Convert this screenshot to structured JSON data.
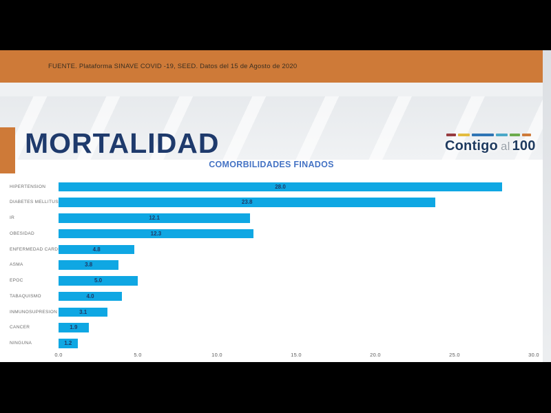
{
  "letterbox_color": "#000000",
  "banner": {
    "text": "FUENTE. Plataforma SINAVE COVID -19, SEED. Datos del 15 de Agosto de 2020",
    "background": "#CE7A38",
    "text_color": "#3A2E20"
  },
  "header": {
    "title": "MORTALIDAD",
    "title_color": "#1E3A6C",
    "accent_color": "#CE7A38",
    "logo": {
      "contigo": "Contigo",
      "al": "al",
      "hundred": "100",
      "text_color": "#1E3A5F",
      "al_color": "#98A0A8",
      "dash_colors": [
        "#973A3F",
        "#E3BC40",
        "#2E74B5",
        "#4AA8C8",
        "#6CAB4C",
        "#CE7A38"
      ]
    }
  },
  "chart_data": {
    "type": "bar",
    "orientation": "horizontal",
    "title": "COMORBILIDADES FINADOS",
    "categories": [
      "HIPERTENSION",
      "DIABETES MELLITUS",
      "IR",
      "OBESIDAD",
      "ENFERMEDAD CARDIACA",
      "ASMA",
      "EPOC",
      "TABAQUISMO",
      "INMUNOSUPRESION",
      "CANCER",
      "NINGUNA"
    ],
    "values": [
      28.0,
      23.8,
      12.1,
      12.3,
      4.8,
      3.8,
      5.0,
      4.0,
      3.1,
      1.9,
      1.2
    ],
    "value_labels": [
      "28.0",
      "23.8",
      "12.1",
      "12.3",
      "4.8",
      "3.8",
      "5.0",
      "4.0",
      "3.1",
      "1.9",
      "1.2"
    ],
    "x_ticks": [
      "0.0",
      "5.0",
      "10.0",
      "15.0",
      "20.0",
      "25.0",
      "30.0"
    ],
    "xlim": [
      0,
      30
    ],
    "grid": false,
    "legend": "none",
    "bar_color": "#0FA7E3",
    "title_color": "#4573C4",
    "value_label_color": "#1F3864",
    "category_label_color": "#6B6B6B",
    "axis_label_color": "#595959"
  }
}
